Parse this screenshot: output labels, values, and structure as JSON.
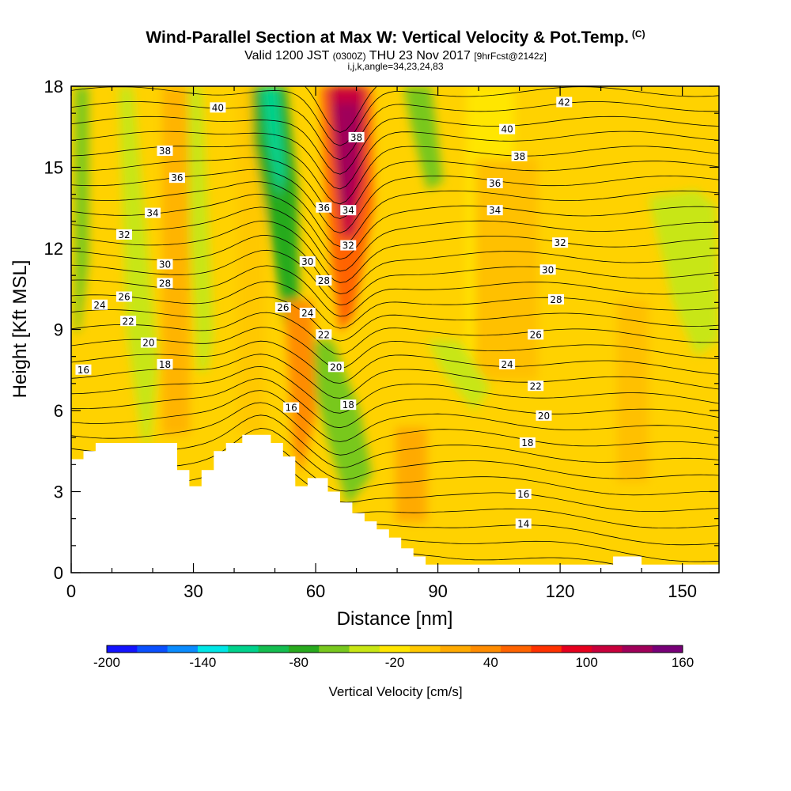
{
  "header": {
    "title": "Wind-Parallel Section at Max W: Vertical Velocity & Pot.Temp.",
    "title_unit": "(C)",
    "valid_prefix": "Valid 1200 JST",
    "valid_utc": "(0300Z)",
    "valid_date": "THU 23 Nov 2017",
    "forecast": "[9hrFcst@2142z]",
    "indices": "i,j,k,angle=34,23,24,83"
  },
  "chart_data": {
    "type": "heatmap",
    "xlabel": "Distance [nm]",
    "ylabel": "Height [Kft MSL]",
    "xlim": [
      0,
      159
    ],
    "ylim": [
      0,
      18
    ],
    "x_ticks": [
      "0",
      "30",
      "60",
      "90",
      "120",
      "150"
    ],
    "y_ticks": [
      "0",
      "3",
      "6",
      "9",
      "12",
      "15",
      "18"
    ],
    "colorbar": {
      "label": "Vertical Velocity [cm/s]",
      "tick_labels": [
        "-200",
        "-140",
        "-80",
        "-20",
        "40",
        "100",
        "160"
      ],
      "range": [
        -200,
        160
      ],
      "colors": [
        "#1414ff",
        "#0a50ff",
        "#0a8cff",
        "#00e6e6",
        "#00d28c",
        "#14be50",
        "#28aa1e",
        "#78c81e",
        "#c8e614",
        "#ffe600",
        "#ffc800",
        "#ffaa00",
        "#ff8c00",
        "#ff6400",
        "#ff3200",
        "#e6001e",
        "#c8003c",
        "#a0005a",
        "#780078"
      ]
    },
    "terrain_kft": [
      [
        0,
        4.2
      ],
      [
        3,
        4.2
      ],
      [
        3,
        4.5
      ],
      [
        6,
        4.5
      ],
      [
        6,
        4.8
      ],
      [
        26,
        4.8
      ],
      [
        26,
        3.8
      ],
      [
        29,
        3.8
      ],
      [
        29,
        3.2
      ],
      [
        32,
        3.2
      ],
      [
        32,
        3.8
      ],
      [
        35,
        3.8
      ],
      [
        35,
        4.5
      ],
      [
        38,
        4.5
      ],
      [
        38,
        4.8
      ],
      [
        42,
        4.8
      ],
      [
        42,
        5.1
      ],
      [
        49,
        5.1
      ],
      [
        49,
        4.8
      ],
      [
        52,
        4.8
      ],
      [
        52,
        4.3
      ],
      [
        55,
        4.3
      ],
      [
        55,
        3.2
      ],
      [
        58,
        3.2
      ],
      [
        58,
        3.5
      ],
      [
        63,
        3.5
      ],
      [
        63,
        3.0
      ],
      [
        66,
        3.0
      ],
      [
        66,
        2.6
      ],
      [
        69,
        2.6
      ],
      [
        69,
        2.2
      ],
      [
        72,
        2.2
      ],
      [
        72,
        1.9
      ],
      [
        75,
        1.9
      ],
      [
        75,
        1.6
      ],
      [
        78,
        1.6
      ],
      [
        78,
        1.3
      ],
      [
        81,
        1.3
      ],
      [
        81,
        0.9
      ],
      [
        84,
        0.9
      ],
      [
        84,
        0.6
      ],
      [
        87,
        0.6
      ],
      [
        87,
        0.3
      ],
      [
        133,
        0.3
      ],
      [
        133,
        0.6
      ],
      [
        140,
        0.6
      ],
      [
        140,
        0.3
      ],
      [
        159,
        0.3
      ]
    ],
    "theta_labels": [
      {
        "t": "40",
        "x": 36,
        "y": 17.2
      },
      {
        "t": "38",
        "x": 23,
        "y": 15.6
      },
      {
        "t": "36",
        "x": 26,
        "y": 14.6
      },
      {
        "t": "34",
        "x": 20,
        "y": 13.3
      },
      {
        "t": "32",
        "x": 13,
        "y": 12.5
      },
      {
        "t": "30",
        "x": 23,
        "y": 11.4
      },
      {
        "t": "28",
        "x": 23,
        "y": 10.7
      },
      {
        "t": "26",
        "x": 13,
        "y": 10.2
      },
      {
        "t": "24",
        "x": 7,
        "y": 9.9
      },
      {
        "t": "22",
        "x": 14,
        "y": 9.3
      },
      {
        "t": "20",
        "x": 19,
        "y": 8.5
      },
      {
        "t": "18",
        "x": 23,
        "y": 7.7
      },
      {
        "t": "16",
        "x": 3,
        "y": 7.5
      },
      {
        "t": "36",
        "x": 62,
        "y": 13.5
      },
      {
        "t": "34",
        "x": 68,
        "y": 13.4
      },
      {
        "t": "32",
        "x": 68,
        "y": 12.1
      },
      {
        "t": "30",
        "x": 58,
        "y": 11.5
      },
      {
        "t": "28",
        "x": 62,
        "y": 10.8
      },
      {
        "t": "26",
        "x": 52,
        "y": 9.8
      },
      {
        "t": "24",
        "x": 58,
        "y": 9.6
      },
      {
        "t": "22",
        "x": 62,
        "y": 8.8
      },
      {
        "t": "20",
        "x": 65,
        "y": 7.6
      },
      {
        "t": "18",
        "x": 68,
        "y": 6.2
      },
      {
        "t": "16",
        "x": 54,
        "y": 6.1
      },
      {
        "t": "38",
        "x": 70,
        "y": 16.1
      },
      {
        "t": "42",
        "x": 121,
        "y": 17.4
      },
      {
        "t": "40",
        "x": 107,
        "y": 16.4
      },
      {
        "t": "38",
        "x": 110,
        "y": 15.4
      },
      {
        "t": "36",
        "x": 104,
        "y": 14.4
      },
      {
        "t": "34",
        "x": 104,
        "y": 13.4
      },
      {
        "t": "32",
        "x": 120,
        "y": 12.2
      },
      {
        "t": "30",
        "x": 117,
        "y": 11.2
      },
      {
        "t": "28",
        "x": 119,
        "y": 10.1
      },
      {
        "t": "26",
        "x": 114,
        "y": 8.8
      },
      {
        "t": "24",
        "x": 107,
        "y": 7.7
      },
      {
        "t": "22",
        "x": 114,
        "y": 6.9
      },
      {
        "t": "20",
        "x": 116,
        "y": 5.8
      },
      {
        "t": "18",
        "x": 112,
        "y": 4.8
      },
      {
        "t": "16",
        "x": 111,
        "y": 2.9
      },
      {
        "t": "14",
        "x": 111,
        "y": 1.8
      }
    ]
  }
}
